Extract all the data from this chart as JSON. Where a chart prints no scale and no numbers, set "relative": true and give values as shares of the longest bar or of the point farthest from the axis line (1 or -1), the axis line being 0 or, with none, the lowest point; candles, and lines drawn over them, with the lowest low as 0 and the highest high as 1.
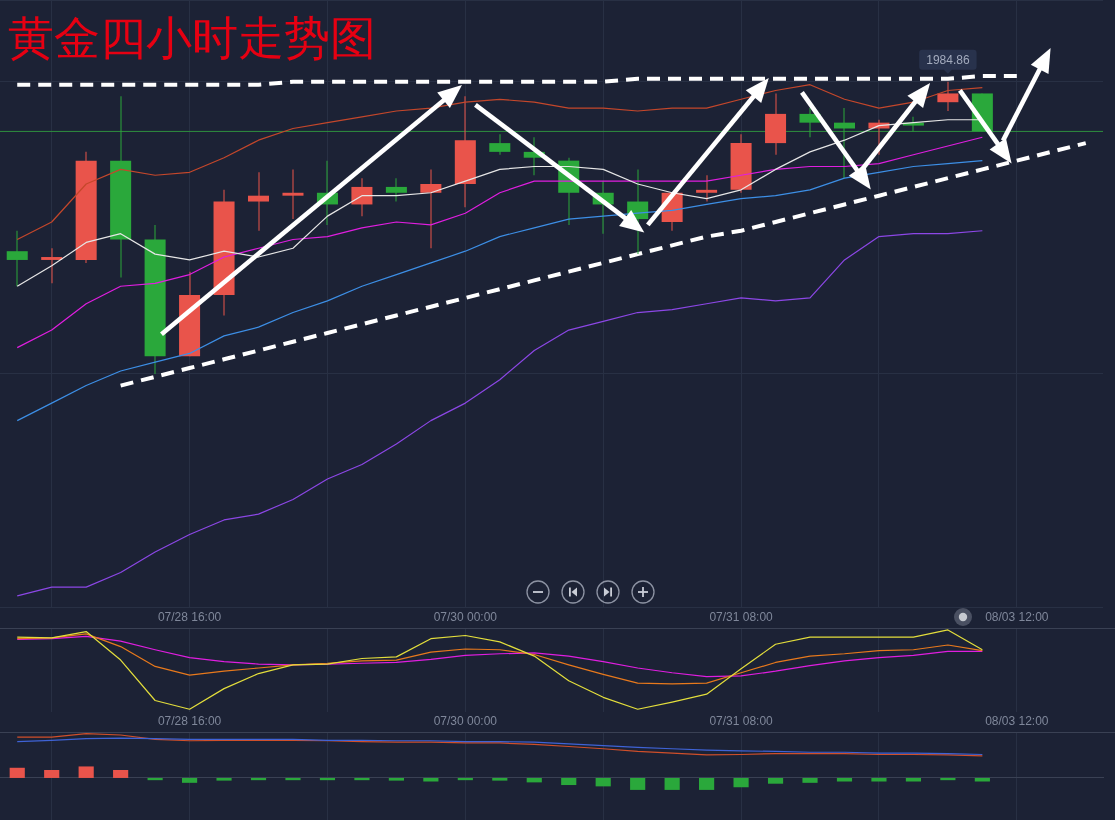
{
  "chart_data": [
    {
      "type": "candlestick",
      "title": "黄金四小时走势图",
      "relative": true,
      "grid": true,
      "tick_labels": "x",
      "marker": "none",
      "categories": [
        null,
        null,
        null,
        null,
        null,
        "07/28 16:00",
        null,
        null,
        null,
        null,
        null,
        null,
        null,
        "07/30 00:00",
        null,
        null,
        null,
        null,
        null,
        null,
        null,
        "07/31 08:00",
        null,
        null,
        null,
        null,
        null,
        null,
        null,
        "08/03 12:00",
        null,
        null
      ],
      "ohlc": [
        [
          0.42,
          0.49,
          0.3,
          0.39
        ],
        [
          0.39,
          0.43,
          0.31,
          0.4
        ],
        [
          0.39,
          0.76,
          0.38,
          0.73
        ],
        [
          0.73,
          0.95,
          0.33,
          0.46
        ],
        [
          0.46,
          0.51,
          0,
          0.06
        ],
        [
          0.06,
          0.35,
          0.06,
          0.27
        ],
        [
          0.27,
          0.63,
          0.2,
          0.59
        ],
        [
          0.59,
          0.69,
          0.49,
          0.61
        ],
        [
          0.61,
          0.7,
          0.53,
          0.62
        ],
        [
          0.62,
          0.73,
          0.51,
          0.58
        ],
        [
          0.58,
          0.67,
          0.54,
          0.64
        ],
        [
          0.64,
          0.67,
          0.59,
          0.62
        ],
        [
          0.62,
          0.7,
          0.43,
          0.65
        ],
        [
          0.65,
          0.95,
          0.57,
          0.8
        ],
        [
          0.79,
          0.82,
          0.75,
          0.76
        ],
        [
          0.76,
          0.81,
          0.68,
          0.74
        ],
        [
          0.73,
          0.74,
          0.51,
          0.62
        ],
        [
          0.62,
          0.66,
          0.48,
          0.58
        ],
        [
          0.59,
          0.7,
          0.41,
          0.53
        ],
        [
          0.52,
          0.62,
          0.49,
          0.62
        ],
        [
          0.62,
          0.68,
          0.59,
          0.63
        ],
        [
          0.63,
          0.82,
          0.62,
          0.79
        ],
        [
          0.79,
          0.96,
          0.75,
          0.89
        ],
        [
          0.89,
          0.91,
          0.81,
          0.86
        ],
        [
          0.86,
          0.91,
          0.67,
          0.84
        ],
        [
          0.84,
          0.87,
          0.75,
          0.86
        ],
        [
          0.86,
          0.88,
          0.83,
          0.85
        ],
        [
          0.93,
          1,
          0.9,
          0.96
        ],
        [
          0.96,
          0.96,
          0.83,
          0.83
        ],
        null,
        null,
        null
      ],
      "colors": [
        "#2aa83b",
        "#e9544b",
        "#e9544b",
        "#2aa83b",
        "#2aa83b",
        "#e9544b",
        "#e9544b",
        "#e9544b",
        "#e9544b",
        "#2aa83b",
        "#e9544b",
        "#2aa83b",
        "#e9544b",
        "#e9544b",
        "#2aa83b",
        "#2aa83b",
        "#2aa83b",
        "#2aa83b",
        "#2aa83b",
        "#e9544b",
        "#e9544b",
        "#e9544b",
        "#e9544b",
        "#2aa83b",
        "#2aa83b",
        "#e9544b",
        "#2aa83b",
        "#e9544b",
        "#2aa83b",
        null,
        null,
        null
      ],
      "series": [
        {
          "type": "line",
          "color": "#c4472b",
          "values": [
            0.46,
            0.52,
            0.65,
            0.7,
            0.68,
            0.69,
            0.74,
            0.8,
            0.84,
            0.86,
            0.88,
            0.9,
            0.91,
            0.93,
            0.94,
            0.93,
            0.91,
            0.91,
            0.9,
            0.91,
            0.91,
            0.94,
            0.97,
            0.99,
            0.94,
            0.91,
            0.93,
            0.97,
            0.98,
            null,
            null,
            null
          ]
        },
        {
          "type": "line",
          "color": "#e6e6e6",
          "values": [
            0.3,
            0.37,
            0.45,
            0.48,
            0.41,
            0.39,
            0.42,
            0.4,
            0.43,
            0.54,
            0.61,
            0.61,
            0.62,
            0.66,
            0.7,
            0.71,
            0.71,
            0.7,
            0.65,
            0.62,
            0.6,
            0.63,
            0.7,
            0.76,
            0.8,
            0.85,
            0.86,
            0.87,
            0.87,
            null,
            null,
            null
          ]
        },
        {
          "type": "line",
          "color": "#e01ee0",
          "values": [
            0.09,
            0.15,
            0.24,
            0.3,
            0.31,
            0.34,
            0.4,
            0.43,
            0.46,
            0.47,
            0.5,
            0.52,
            0.51,
            0.55,
            0.62,
            0.66,
            0.66,
            0.66,
            0.66,
            0.66,
            0.66,
            0.68,
            0.7,
            0.71,
            0.71,
            0.72,
            0.75,
            0.78,
            0.81,
            null,
            null,
            null
          ]
        },
        {
          "type": "line",
          "color": "#3d8fe6",
          "values": [
            -0.16,
            -0.1,
            -0.04,
            0.01,
            0.04,
            0.07,
            0.13,
            0.16,
            0.21,
            0.25,
            0.3,
            0.34,
            0.38,
            0.42,
            0.47,
            0.5,
            0.53,
            0.54,
            0.55,
            0.56,
            0.58,
            0.6,
            0.61,
            0.63,
            0.67,
            0.69,
            0.71,
            0.72,
            0.73,
            null,
            null,
            null
          ]
        },
        {
          "type": "line",
          "color": "#8c47e6",
          "values": [
            -0.76,
            -0.73,
            -0.73,
            -0.68,
            -0.61,
            -0.55,
            -0.5,
            -0.48,
            -0.43,
            -0.36,
            -0.31,
            -0.24,
            -0.16,
            -0.1,
            -0.02,
            0.08,
            0.15,
            0.18,
            0.21,
            0.22,
            0.24,
            0.26,
            0.25,
            0.26,
            0.39,
            0.47,
            0.48,
            0.48,
            0.49,
            null,
            null,
            null
          ]
        },
        {
          "type": "line",
          "color": "#ffffff",
          "line_style": "dashed",
          "values": [
            0.99,
            0.99,
            0.99,
            0.99,
            0.99,
            0.99,
            0.99,
            0.99,
            1.0,
            1.0,
            1.0,
            1.0,
            1.0,
            1.0,
            1.0,
            1.0,
            1.0,
            1.0,
            1.01,
            1.01,
            1.01,
            1.01,
            1.01,
            1.01,
            1.01,
            1.01,
            1.01,
            1.01,
            1.02,
            1.02,
            null,
            null
          ]
        },
        {
          "type": "line",
          "color": "#ffffff",
          "line_style": "dashed",
          "values": [
            null,
            null,
            null,
            -0.04,
            -0.01,
            0.02,
            0.05,
            0.08,
            0.11,
            0.14,
            0.17,
            0.2,
            0.23,
            0.26,
            0.29,
            0.32,
            0.35,
            0.38,
            0.41,
            0.44,
            0.47,
            0.49,
            0.52,
            0.55,
            0.58,
            0.61,
            0.64,
            0.67,
            0.7,
            0.73,
            0.76,
            0.79
          ]
        }
      ],
      "ref_lines": [
        {
          "axis": "y",
          "value": 0.83,
          "color": "#2f8f3f"
        }
      ],
      "annotations": [
        {
          "text": "1984.86",
          "y": 1
        }
      ]
    },
    {
      "type": "line",
      "relative": true,
      "grid": "x",
      "tick_labels": "x",
      "marker": "none",
      "categories": [
        null,
        null,
        null,
        null,
        null,
        "07/28 16:00",
        null,
        null,
        null,
        null,
        null,
        null,
        null,
        "07/30 00:00",
        null,
        null,
        null,
        null,
        null,
        null,
        null,
        "07/31 08:00",
        null,
        null,
        null,
        null,
        null,
        null,
        null,
        "08/03 12:00",
        null,
        null
      ],
      "series": [
        {
          "color": "#e3de3c",
          "values": [
            0.91,
            0.9,
            0.98,
            0.62,
            0.11,
            0,
            0.26,
            0.45,
            0.56,
            0.57,
            0.64,
            0.66,
            0.89,
            0.93,
            0.85,
            0.67,
            0.36,
            0.15,
            0,
            0.09,
            0.19,
            0.51,
            0.82,
            0.91,
            0.91,
            0.91,
            0.91,
            1,
            0.75,
            null,
            null,
            null
          ]
        },
        {
          "color": "#e8791c",
          "values": [
            0.89,
            0.9,
            0.95,
            0.79,
            0.54,
            0.43,
            0.48,
            0.52,
            0.56,
            0.58,
            0.61,
            0.62,
            0.72,
            0.76,
            0.75,
            0.69,
            0.56,
            0.44,
            0.33,
            0.32,
            0.33,
            0.46,
            0.59,
            0.67,
            0.7,
            0.74,
            0.75,
            0.81,
            0.74,
            null,
            null,
            null
          ]
        },
        {
          "color": "#e01ee0",
          "values": [
            0.88,
            0.89,
            0.92,
            0.86,
            0.75,
            0.65,
            0.6,
            0.57,
            0.56,
            0.57,
            0.58,
            0.59,
            0.63,
            0.68,
            0.7,
            0.71,
            0.67,
            0.6,
            0.52,
            0.46,
            0.41,
            0.42,
            0.48,
            0.55,
            0.61,
            0.65,
            0.68,
            0.73,
            0.73,
            null,
            null,
            null
          ]
        }
      ]
    },
    {
      "type": "line",
      "relative": true,
      "grid": "x",
      "tick_labels": false,
      "marker": "none",
      "categories": [
        null,
        null,
        null,
        null,
        null,
        null,
        null,
        null,
        null,
        null,
        null,
        null,
        null,
        null,
        null,
        null,
        null,
        null,
        null,
        null,
        null,
        null,
        null,
        null,
        null,
        null,
        null,
        null,
        null,
        null,
        null,
        null
      ],
      "series": [
        {
          "type": "bar",
          "colors": [
            "#e9544b",
            "#e9544b",
            "#e9544b",
            "#e9544b",
            "#2aa83b",
            "#2aa83b",
            "#2aa83b",
            "#2aa83b",
            "#2aa83b",
            "#2aa83b",
            "#2aa83b",
            "#2aa83b",
            "#2aa83b",
            "#2aa83b",
            "#2aa83b",
            "#2aa83b",
            "#2aa83b",
            "#2aa83b",
            "#2aa83b",
            "#2aa83b",
            "#2aa83b",
            "#2aa83b",
            "#2aa83b",
            "#2aa83b",
            "#2aa83b",
            "#2aa83b",
            "#2aa83b",
            "#2aa83b",
            "#2aa83b",
            null,
            null,
            null
          ],
          "values": [
            0.23,
            0.18,
            0.26,
            0.18,
            -0.05,
            -0.11,
            -0.06,
            -0.05,
            -0.05,
            -0.05,
            -0.05,
            -0.06,
            -0.08,
            -0.05,
            -0.06,
            -0.1,
            -0.16,
            -0.19,
            -0.27,
            -0.27,
            -0.27,
            -0.21,
            -0.13,
            -0.11,
            -0.08,
            -0.08,
            -0.08,
            -0.05,
            -0.08,
            null,
            null,
            null
          ]
        },
        {
          "color": "#3f63d6",
          "values": [
            0.82,
            0.85,
            0.89,
            0.9,
            0.89,
            0.87,
            0.87,
            0.87,
            0.87,
            0.85,
            0.85,
            0.84,
            0.84,
            0.82,
            0.82,
            0.81,
            0.77,
            0.73,
            0.69,
            0.66,
            0.63,
            0.61,
            0.6,
            0.58,
            0.58,
            0.56,
            0.56,
            0.55,
            0.53,
            null,
            null,
            null
          ]
        },
        {
          "color": "#cf4f2a",
          "values": [
            0.92,
            0.92,
            1,
            0.97,
            0.87,
            0.84,
            0.85,
            0.85,
            0.85,
            0.84,
            0.82,
            0.81,
            0.81,
            0.79,
            0.79,
            0.76,
            0.71,
            0.66,
            0.6,
            0.56,
            0.52,
            0.53,
            0.55,
            0.55,
            0.55,
            0.53,
            0.53,
            0.52,
            0.5,
            null,
            null,
            null
          ]
        }
      ]
    }
  ]
}
